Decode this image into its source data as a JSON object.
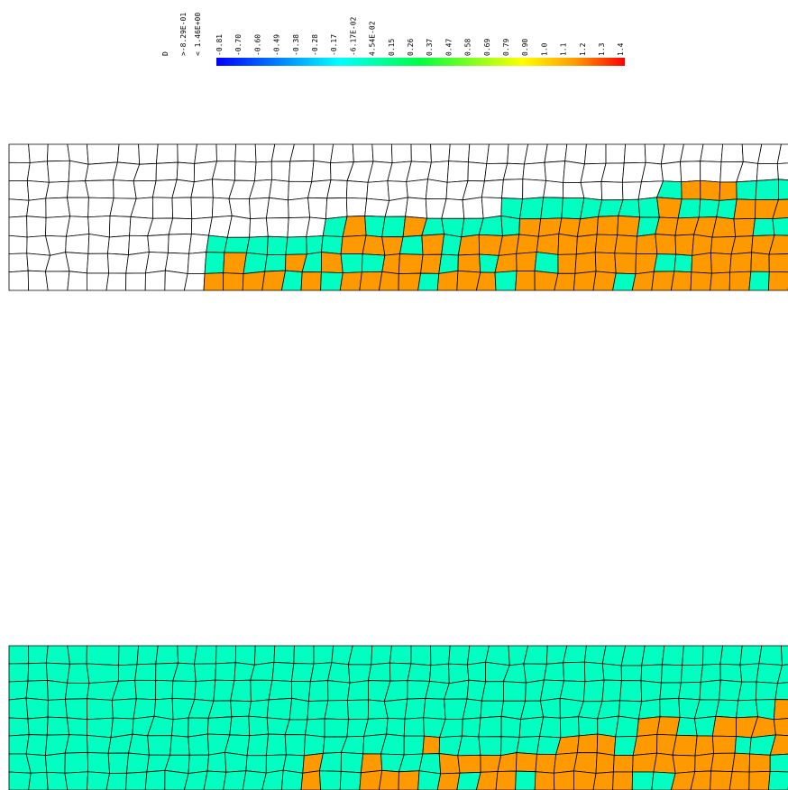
{
  "legend": {
    "title": "D",
    "range_low": ">-8.29E-01",
    "range_high": "< 1.46E+00",
    "levels": [
      "-0.81",
      "-0.70",
      "-0.60",
      "-0.49",
      "-0.38",
      "-0.28",
      "-0.17",
      "-6.17E-02",
      "4.54E-02",
      "0.15",
      "0.26",
      "0.37",
      "0.47",
      "0.58",
      "0.69",
      "0.79",
      "0.90",
      "1.0",
      "1.1",
      "1.2",
      "1.3",
      "1.4"
    ]
  }
}
